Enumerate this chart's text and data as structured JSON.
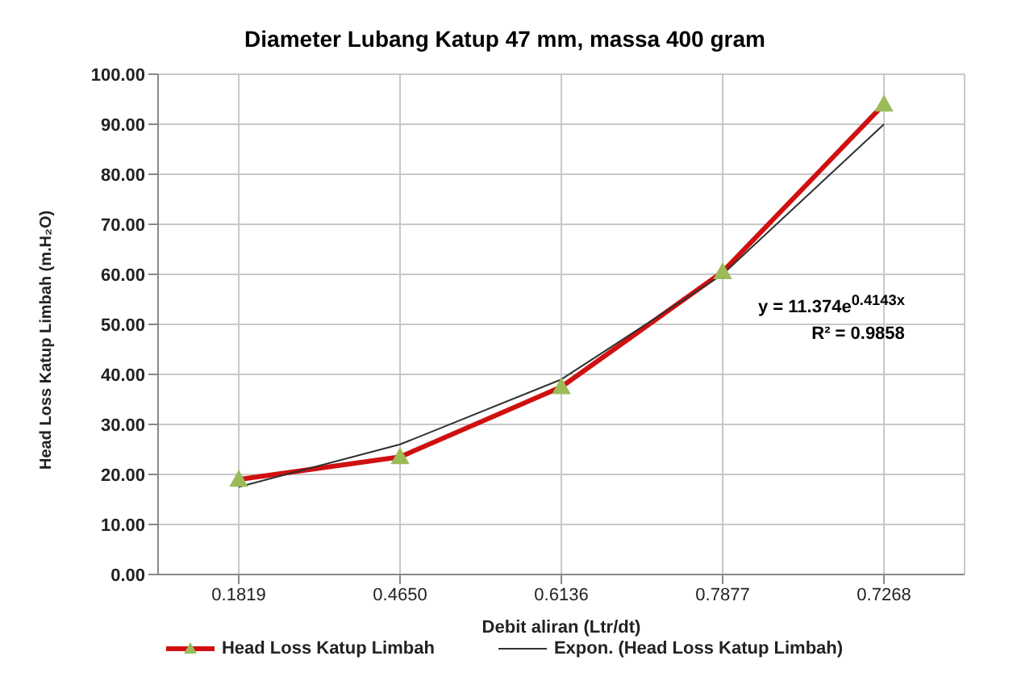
{
  "chart_data": {
    "type": "line",
    "title": "Diameter Lubang Katup 47 mm, massa 400 gram",
    "xlabel": "Debit aliran  (Ltr/dt)",
    "ylabel": "Head Loss Katup Limbah (m.H₂O)",
    "categories": [
      "0.1819",
      "0.4650",
      "0.6136",
      "0.7877",
      "0.7268"
    ],
    "series": [
      {
        "name": "Head Loss Katup Limbah",
        "color": "#d01010",
        "values": [
          19,
          23.5,
          37.5,
          60.5,
          94
        ],
        "marker": "triangle",
        "line_style": "solid"
      },
      {
        "name": "Expon. (Head Loss Katup Limbah)",
        "color": "#303030",
        "values": [
          17.5,
          26,
          39,
          60,
          90
        ],
        "marker": "none",
        "line_style": "solid"
      }
    ],
    "ylim": [
      0,
      100
    ],
    "yticks": [
      {
        "value": 0,
        "label": "0.00"
      },
      {
        "value": 10,
        "label": "10.00"
      },
      {
        "value": 20,
        "label": "20.00"
      },
      {
        "value": 30,
        "label": "30.00"
      },
      {
        "value": 40,
        "label": "40.00"
      },
      {
        "value": 50,
        "label": "50.00"
      },
      {
        "value": 60,
        "label": "60.00"
      },
      {
        "value": 70,
        "label": "70.00"
      },
      {
        "value": 80,
        "label": "80.00"
      },
      {
        "value": 90,
        "label": "90.00"
      },
      {
        "value": 100,
        "label": "100.00"
      }
    ],
    "annotations": [
      "y = 11.374e$^{0.4143x}$",
      "R² = 0.9858"
    ],
    "grid": true,
    "legend": "bottom"
  }
}
